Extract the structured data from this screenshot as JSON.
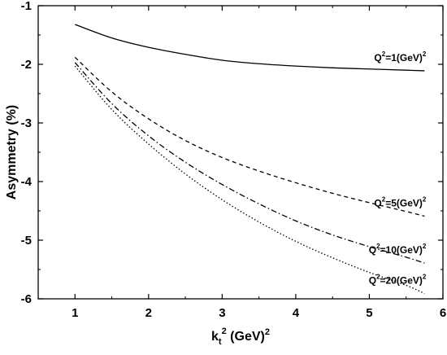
{
  "chart_data": {
    "type": "line",
    "title": "",
    "xlabel": {
      "main": "k",
      "sub": "t",
      "sup": "2",
      "unit": " (GeV)",
      "unit_sup": "2"
    },
    "ylabel": "Asymmetry (%)",
    "xlim": [
      0.5,
      6
    ],
    "ylim": [
      -6,
      -1
    ],
    "xticks": [
      "1",
      "2",
      "3",
      "4",
      "5",
      "6"
    ],
    "xtick_values": [
      1,
      2,
      3,
      4,
      5,
      6
    ],
    "yticks": [
      "-1",
      "-2",
      "-3",
      "-4",
      "-5",
      "-6"
    ],
    "ytick_values": [
      -1,
      -2,
      -3,
      -4,
      -5,
      -6
    ],
    "grid": false,
    "series": [
      {
        "name": "Q²=1(GeV)²",
        "label_parts": {
          "q": "Q",
          "q_sup": "2",
          "eq": "=1(GeV)",
          "unit_sup": "2"
        },
        "dash": "solid",
        "x": [
          1.0,
          1.5,
          2.0,
          2.5,
          3.0,
          3.5,
          4.0,
          4.5,
          5.0,
          5.5,
          5.75
        ],
        "y": [
          -1.32,
          -1.55,
          -1.71,
          -1.83,
          -1.93,
          -1.99,
          -2.03,
          -2.06,
          -2.08,
          -2.1,
          -2.11
        ]
      },
      {
        "name": "Q²=5(GeV)²",
        "label_parts": {
          "q": "Q",
          "q_sup": "2",
          "eq": "=5(GeV)",
          "unit_sup": "2"
        },
        "dash": "dashed",
        "x": [
          1.0,
          1.5,
          2.0,
          2.5,
          3.0,
          3.5,
          4.0,
          4.5,
          5.0,
          5.5,
          5.75
        ],
        "y": [
          -1.88,
          -2.47,
          -2.93,
          -3.3,
          -3.59,
          -3.82,
          -4.02,
          -4.2,
          -4.36,
          -4.51,
          -4.59
        ]
      },
      {
        "name": "Q²=10(GeV)²",
        "label_parts": {
          "q": "Q",
          "q_sup": "2",
          "eq": "=10(GeV)",
          "unit_sup": "2"
        },
        "dash": "dashdot",
        "x": [
          1.0,
          1.5,
          2.0,
          2.5,
          3.0,
          3.5,
          4.0,
          4.5,
          5.0,
          5.5,
          5.75
        ],
        "y": [
          -1.97,
          -2.67,
          -3.22,
          -3.67,
          -4.05,
          -4.38,
          -4.67,
          -4.91,
          -5.11,
          -5.29,
          -5.39
        ]
      },
      {
        "name": "Q²=20(GeV)²",
        "label_parts": {
          "q": "Q",
          "q_sup": "2",
          "eq": "=20(GeV)",
          "unit_sup": "2"
        },
        "dash": "dotted",
        "x": [
          1.0,
          1.5,
          2.0,
          2.5,
          3.0,
          3.5,
          4.0,
          4.5,
          5.0,
          5.5,
          5.75
        ],
        "y": [
          -2.03,
          -2.77,
          -3.36,
          -3.87,
          -4.31,
          -4.69,
          -5.02,
          -5.3,
          -5.55,
          -5.77,
          -5.91
        ]
      }
    ]
  }
}
